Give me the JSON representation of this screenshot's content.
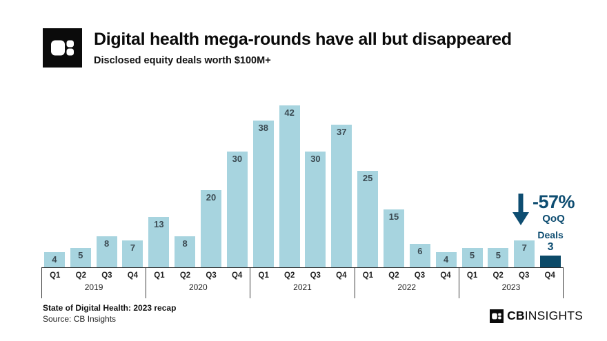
{
  "header": {
    "title": "Digital health mega-rounds have all but disappeared",
    "subtitle": "Disclosed equity deals worth $100M+"
  },
  "chart_data": {
    "type": "bar",
    "title": "Digital health mega-rounds have all but disappeared",
    "subtitle": "Disclosed equity deals worth $100M+",
    "groups": [
      {
        "year": "2019",
        "quarters": [
          "Q1",
          "Q2",
          "Q3",
          "Q4"
        ],
        "values": [
          4,
          5,
          8,
          7
        ]
      },
      {
        "year": "2020",
        "quarters": [
          "Q1",
          "Q2",
          "Q3",
          "Q4"
        ],
        "values": [
          13,
          8,
          20,
          30
        ]
      },
      {
        "year": "2021",
        "quarters": [
          "Q1",
          "Q2",
          "Q3",
          "Q4"
        ],
        "values": [
          38,
          42,
          30,
          37
        ]
      },
      {
        "year": "2022",
        "quarters": [
          "Q1",
          "Q2",
          "Q3",
          "Q4"
        ],
        "values": [
          25,
          15,
          6,
          4
        ]
      },
      {
        "year": "2023",
        "quarters": [
          "Q1",
          "Q2",
          "Q3",
          "Q4"
        ],
        "values": [
          5,
          5,
          7,
          3
        ]
      }
    ],
    "ylim": [
      0,
      45
    ],
    "grid": false,
    "legend": "none",
    "bar_color": "#A7D4DF",
    "highlight_color": "#0C4A68",
    "highlight": {
      "group_index": 4,
      "quarter_index": 3,
      "label": "Deals",
      "value": "3"
    }
  },
  "annotation": {
    "change": "-57%",
    "period": "QoQ",
    "icon": "down-arrow-icon",
    "color": "#0E4D71"
  },
  "footer": {
    "report_title": "State of Digital Health: 2023 recap",
    "source": "Source: CB Insights",
    "brand_cb": "CB",
    "brand_insights": "INSIGHTS"
  }
}
